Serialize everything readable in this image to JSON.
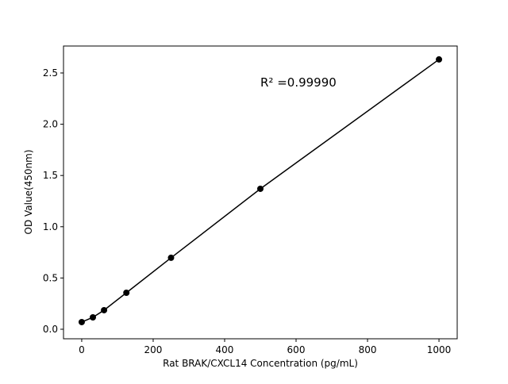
{
  "chart_data": {
    "type": "line",
    "x_label": "Rat BRAK/CXCL14 Concentration (pg/mL)",
    "y_label": "OD Value(450nm)",
    "annotation": "R² =0.99990",
    "x": [
      0,
      31.25,
      62.5,
      125,
      250,
      500,
      1000
    ],
    "series": [
      {
        "color": "#000000",
        "values": [
          0.07,
          0.116,
          0.186,
          0.356,
          0.697,
          1.37,
          2.632
        ]
      }
    ],
    "xlim": [
      -51,
      1051
    ],
    "ylim": [
      -0.093,
      2.763
    ],
    "xticks": [
      0,
      200,
      400,
      600,
      800,
      1000
    ],
    "yticks": [
      {
        "value": 0,
        "label": "0.0"
      },
      0.5,
      {
        "value": 1,
        "label": "1.0"
      },
      1.5,
      {
        "value": 2,
        "label": "2.0"
      },
      2.5
    ]
  }
}
